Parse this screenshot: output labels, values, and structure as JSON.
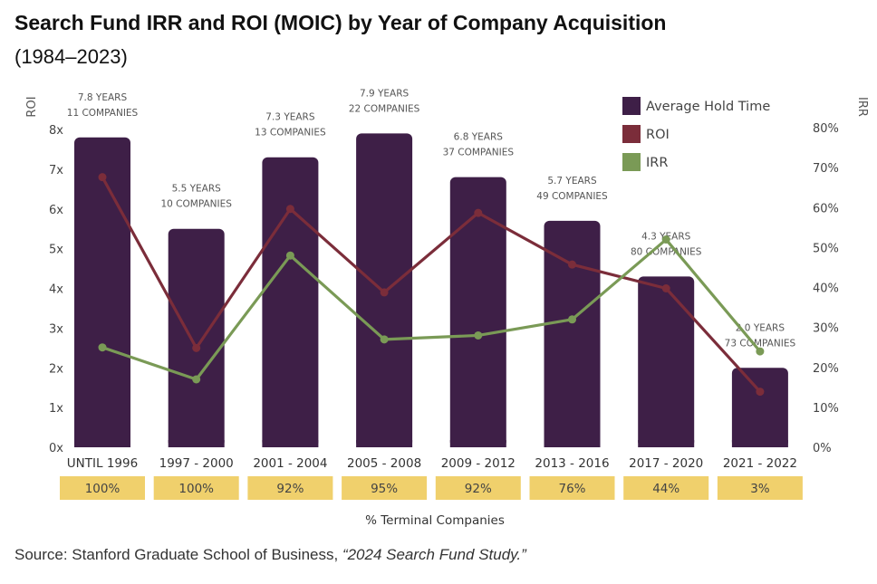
{
  "title": "Search Fund IRR and ROI (MOIC) by Year of Company Acquisition",
  "subtitle": "(1984–2023)",
  "source": {
    "prefix": "Source: Stanford Graduate School of Business, ",
    "citation": "“2024 Search Fund Study.”"
  },
  "colors": {
    "bars": "#3e1f47",
    "roi": "#7b2d3a",
    "irr": "#7a9a56",
    "terminal": "#f0d06c"
  },
  "chart_data": {
    "type": "bar",
    "categories": [
      "UNTIL 1996",
      "1997 - 2000",
      "2001 - 2004",
      "2005 - 2008",
      "2009 - 2012",
      "2013 - 2016",
      "2017 - 2020",
      "2021 - 2022"
    ],
    "left_axis": {
      "label": "ROI",
      "ylim": [
        0,
        8
      ],
      "ticks": [
        "0x",
        "1x",
        "2x",
        "3x",
        "4x",
        "5x",
        "6x",
        "7x",
        "8x"
      ]
    },
    "right_axis": {
      "label": "IRR",
      "ylim": [
        0,
        80
      ],
      "ticks": [
        "0%",
        "10%",
        "20%",
        "30%",
        "40%",
        "50%",
        "60%",
        "70%",
        "80%"
      ]
    },
    "series": [
      {
        "name": "Average Hold Time",
        "kind": "bar",
        "axis": "left",
        "values": [
          7.8,
          5.5,
          7.3,
          7.9,
          6.8,
          5.7,
          4.3,
          2.0
        ]
      },
      {
        "name": "ROI",
        "kind": "line",
        "axis": "left",
        "values": [
          6.8,
          2.5,
          6.0,
          3.9,
          5.9,
          4.6,
          4.0,
          1.4
        ]
      },
      {
        "name": "IRR",
        "kind": "line",
        "axis": "right",
        "values": [
          25,
          17,
          48,
          27,
          28,
          32,
          52,
          24
        ]
      }
    ],
    "bar_labels": [
      [
        "7.8 YEARS",
        "11 COMPANIES"
      ],
      [
        "5.5 YEARS",
        "10 COMPANIES"
      ],
      [
        "7.3 YEARS",
        "13 COMPANIES"
      ],
      [
        "7.9  YEARS",
        "22 COMPANIES"
      ],
      [
        "6.8 YEARS",
        "37 COMPANIES"
      ],
      [
        "5.7 YEARS",
        "49 COMPANIES"
      ],
      [
        "4.3 YEARS",
        "80 COMPANIES"
      ],
      [
        "2.0 YEARS",
        "73 COMPANIES"
      ]
    ],
    "terminal": {
      "label": "% Terminal Companies",
      "values": [
        "100%",
        "100%",
        "92%",
        "95%",
        "92%",
        "76%",
        "44%",
        "3%"
      ]
    },
    "legend": {
      "position": "top-right",
      "items": [
        "Average  Hold Time",
        "ROI",
        "IRR"
      ]
    },
    "grid": false
  }
}
